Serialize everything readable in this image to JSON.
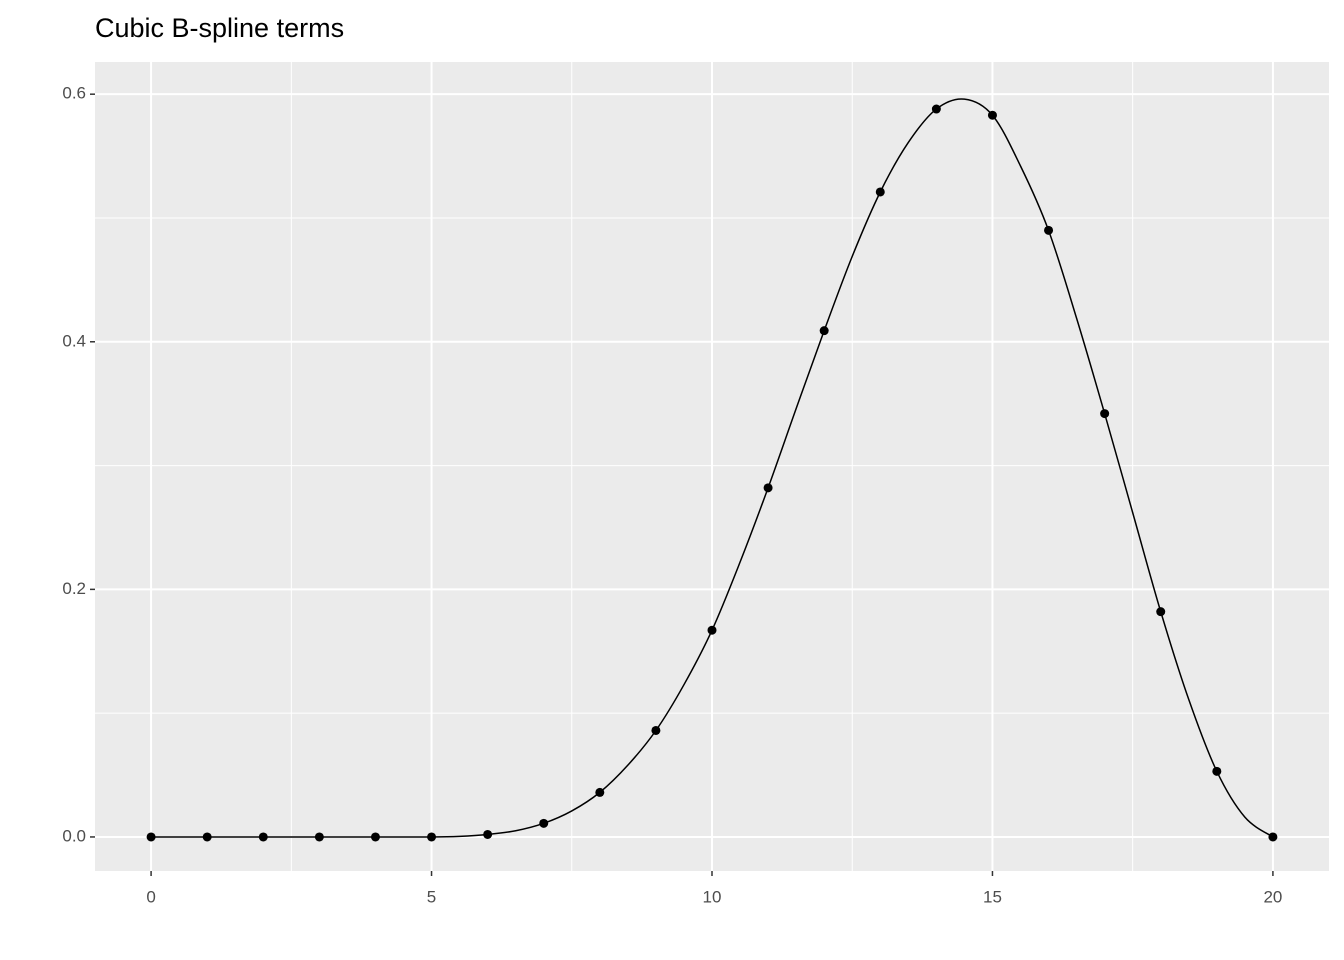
{
  "chart_data": {
    "type": "line",
    "title": "Cubic B-spline terms",
    "series": [
      {
        "style": "line",
        "color": "#000000",
        "x": [
          0,
          1,
          2,
          3,
          4,
          5,
          5.5,
          6,
          6.5,
          7,
          7.5,
          8,
          8.5,
          9,
          9.5,
          10,
          10.5,
          11,
          11.5,
          12,
          12.5,
          13,
          13.5,
          14,
          14.5,
          15,
          15.5,
          16,
          16.5,
          17,
          17.5,
          18,
          18.5,
          19,
          19.5,
          20
        ],
        "values": [
          0,
          0,
          0,
          0,
          0,
          0,
          0.0005,
          0.002,
          0.005,
          0.011,
          0.021,
          0.036,
          0.058,
          0.086,
          0.123,
          0.167,
          0.222,
          0.282,
          0.346,
          0.409,
          0.469,
          0.521,
          0.561,
          0.588,
          0.596,
          0.583,
          0.542,
          0.49,
          0.419,
          0.342,
          0.262,
          0.182,
          0.111,
          0.053,
          0.016,
          0
        ]
      },
      {
        "style": "points",
        "color": "#000000",
        "x": [
          0,
          1,
          2,
          3,
          4,
          5,
          6,
          7,
          8,
          9,
          10,
          11,
          12,
          13,
          14,
          15,
          16,
          17,
          18,
          19,
          20
        ],
        "values": [
          0,
          0,
          0,
          0,
          0,
          0,
          0.002,
          0.011,
          0.036,
          0.086,
          0.167,
          0.282,
          0.409,
          0.521,
          0.588,
          0.583,
          0.49,
          0.342,
          0.182,
          0.053,
          0
        ]
      }
    ],
    "xlim": [
      -1,
      21
    ],
    "ylim": [
      -0.0275,
      0.626
    ],
    "xticks": [
      0,
      5,
      10,
      15,
      20
    ],
    "yticks": [
      {
        "value": 0,
        "label": "0.0"
      },
      0.2,
      0.4,
      0.6
    ],
    "minor_xticks": [
      2.5,
      7.5,
      12.5,
      17.5
    ],
    "minor_yticks": [
      0.1,
      0.3,
      0.5
    ],
    "grid": true
  }
}
